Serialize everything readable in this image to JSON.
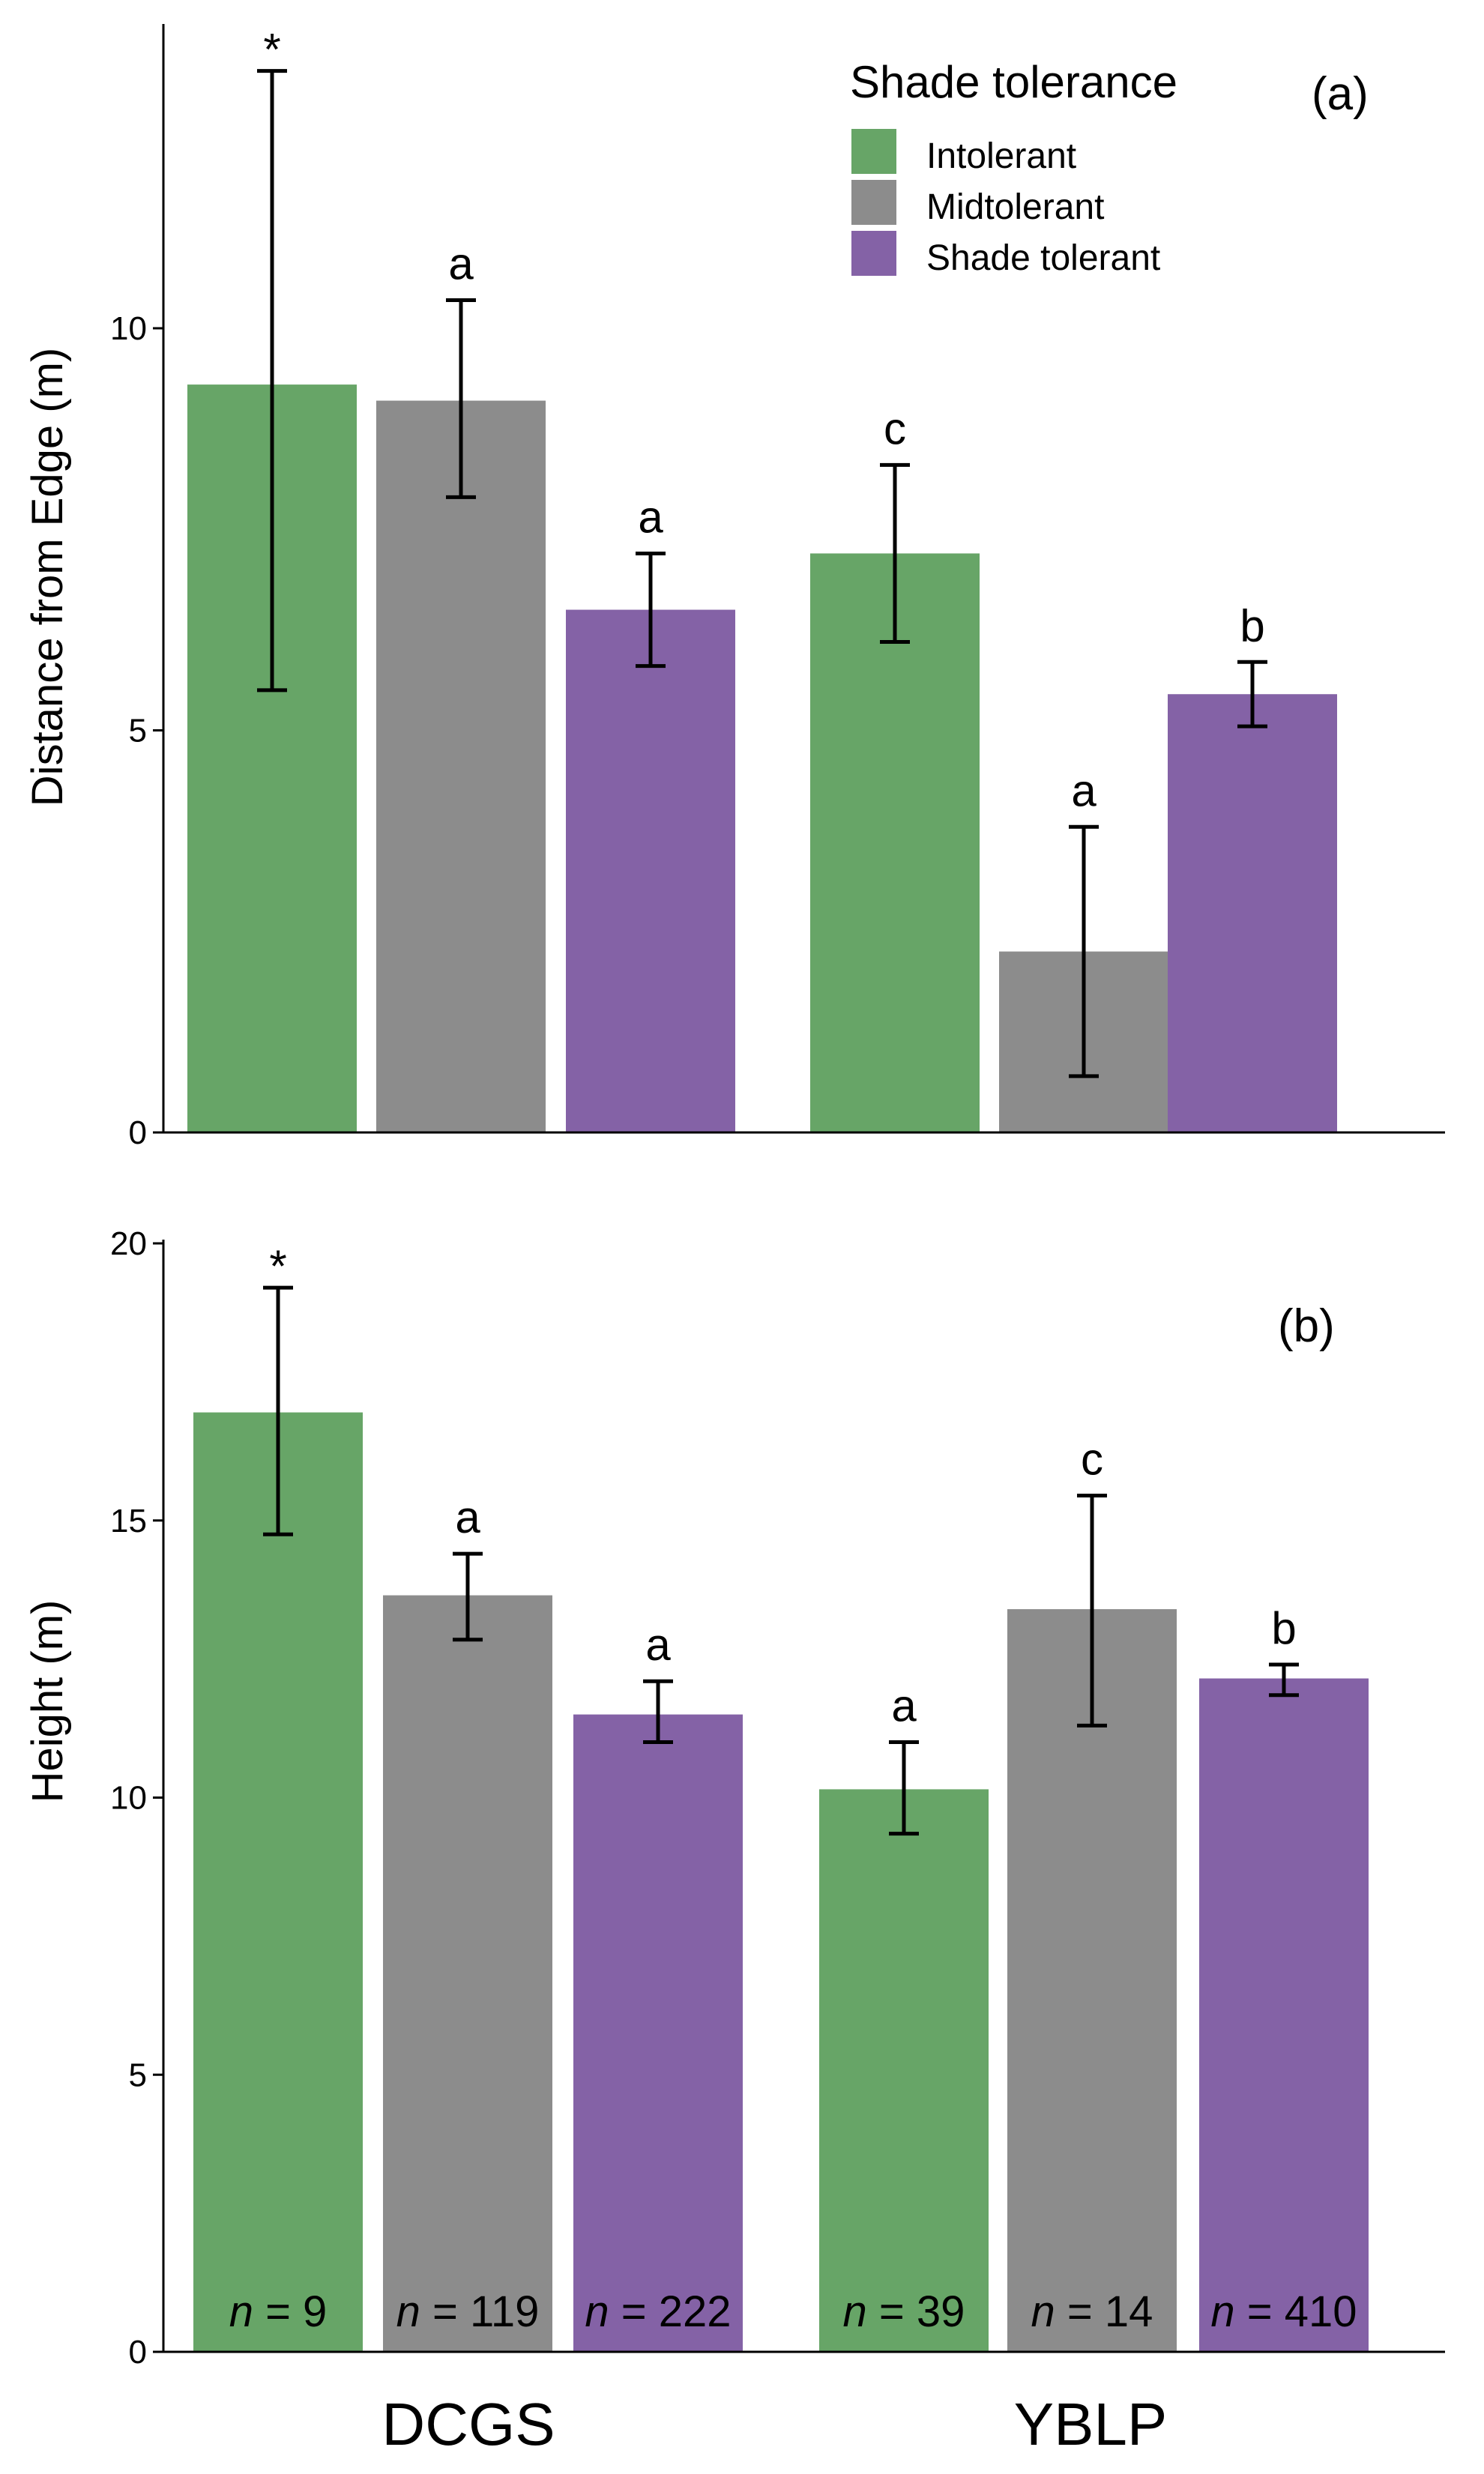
{
  "legend": {
    "title": "Shade tolerance",
    "entries": [
      {
        "label": "Intolerant",
        "color": "#67a567"
      },
      {
        "label": "Midtolerant",
        "color": "#8c8c8c"
      },
      {
        "label": "Shade tolerant",
        "color": "#8462a6"
      }
    ]
  },
  "chart_data": [
    {
      "type": "bar",
      "panel_label": "(a)",
      "categories": [
        "DCGS",
        "YBLP"
      ],
      "ylabel": "Distance from Edge (m)",
      "ylim": [
        0,
        13.3
      ],
      "yticks": [
        0,
        5,
        10
      ],
      "grid": false,
      "legend_position": "top-right",
      "series": [
        {
          "name": "Intolerant",
          "values": [
            9.3,
            7.2
          ],
          "err_low": [
            5.5,
            6.1
          ],
          "err_high": [
            13.2,
            8.3
          ],
          "labels": [
            "*",
            "c"
          ]
        },
        {
          "name": "Midtolerant",
          "values": [
            9.1,
            2.25
          ],
          "err_low": [
            7.9,
            0.7
          ],
          "err_high": [
            10.35,
            3.8
          ],
          "labels": [
            "a",
            "a"
          ]
        },
        {
          "name": "Shade tolerant",
          "values": [
            6.5,
            5.45
          ],
          "err_low": [
            5.8,
            5.05
          ],
          "err_high": [
            7.2,
            5.85
          ],
          "labels": [
            "a",
            "b"
          ]
        }
      ]
    },
    {
      "type": "bar",
      "panel_label": "(b)",
      "categories": [
        "DCGS",
        "YBLP"
      ],
      "ylabel": "Height (m)",
      "ylim": [
        0,
        20
      ],
      "yticks": [
        0,
        5,
        10,
        15,
        20
      ],
      "grid": false,
      "series": [
        {
          "name": "Intolerant",
          "values": [
            16.95,
            10.15
          ],
          "err_low": [
            14.75,
            9.35
          ],
          "err_high": [
            19.2,
            11.0
          ],
          "labels": [
            "*",
            "a"
          ],
          "n": [
            "9",
            "39"
          ]
        },
        {
          "name": "Midtolerant",
          "values": [
            13.65,
            13.4
          ],
          "err_low": [
            12.85,
            11.3
          ],
          "err_high": [
            14.4,
            15.45
          ],
          "labels": [
            "a",
            "c"
          ],
          "n": [
            "119",
            "14"
          ]
        },
        {
          "name": "Shade tolerant",
          "values": [
            11.5,
            12.15
          ],
          "err_low": [
            11.0,
            11.85
          ],
          "err_high": [
            12.1,
            12.4
          ],
          "labels": [
            "a",
            "b"
          ],
          "n": [
            "222",
            "410"
          ]
        }
      ]
    }
  ],
  "n_prefix": "n",
  "n_equals": " = "
}
